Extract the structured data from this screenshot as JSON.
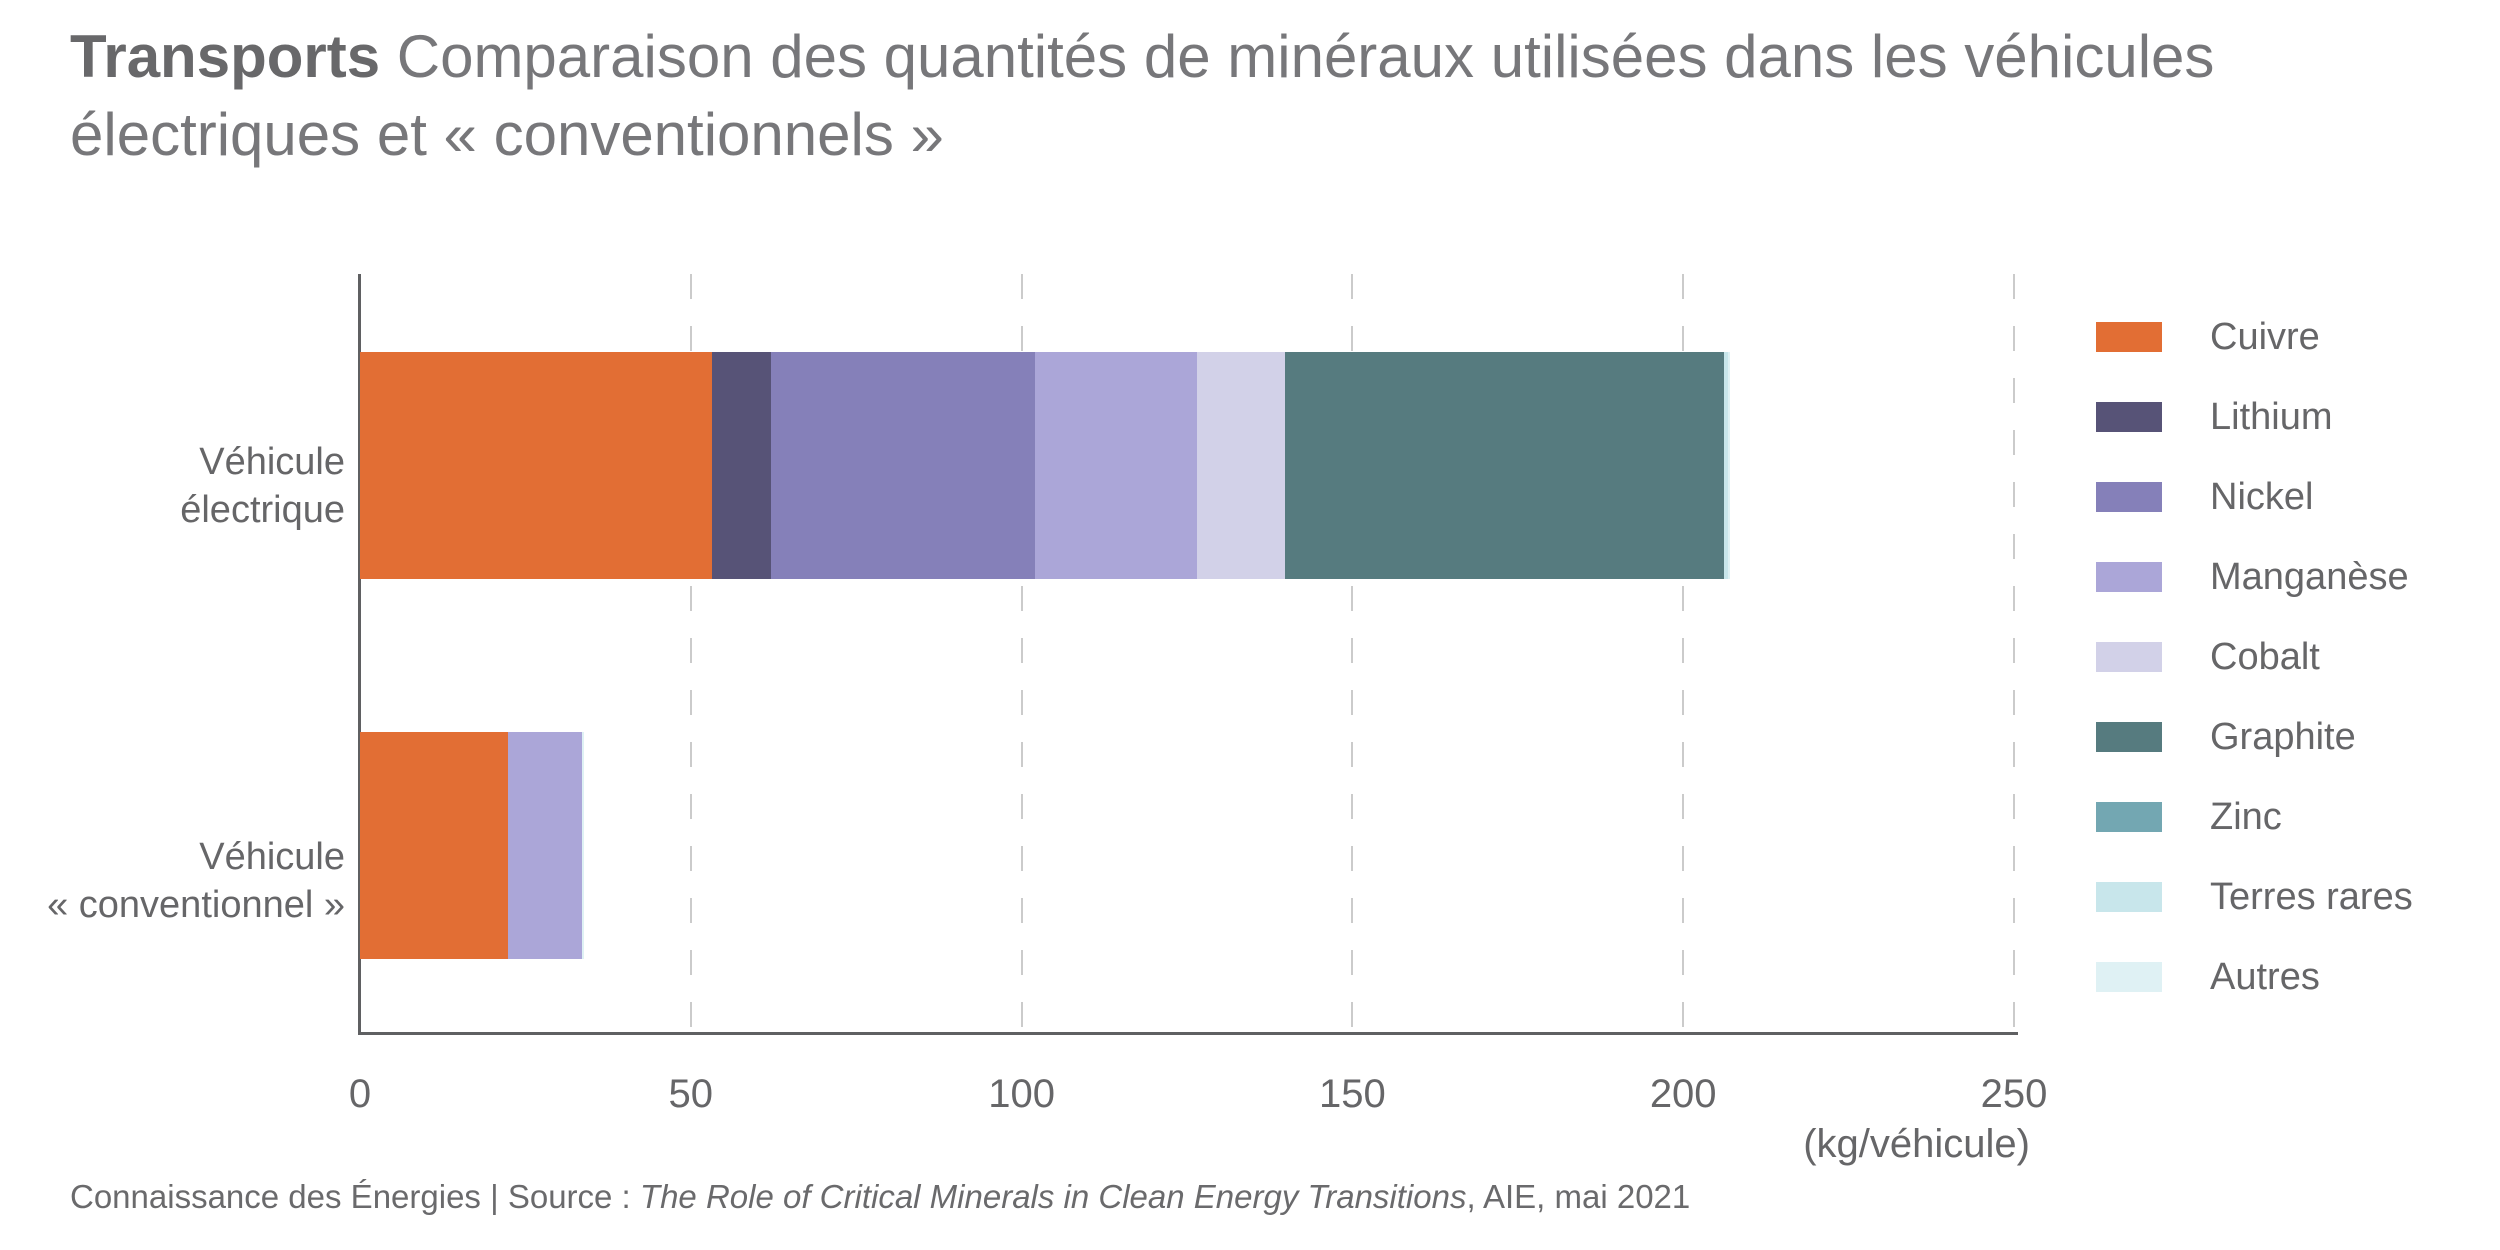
{
  "title": {
    "category": "Transports",
    "line1_rest": "Comparaison des quantités de minéraux utilisées dans les véhicules",
    "line2": "électriques et « conventionnels »"
  },
  "chart_data": {
    "type": "bar",
    "orientation": "horizontal",
    "stacked": true,
    "categories": [
      "Véhicule électrique",
      "Véhicule « conventionnel »"
    ],
    "series": [
      {
        "name": "Cuivre",
        "color": "#E26E34",
        "values": [
          53.2,
          22.3
        ]
      },
      {
        "name": "Lithium",
        "color": "#575377",
        "values": [
          8.9,
          0
        ]
      },
      {
        "name": "Nickel",
        "color": "#8580B9",
        "values": [
          39.9,
          0
        ]
      },
      {
        "name": "Manganèse",
        "color": "#ABA6D8",
        "values": [
          24.5,
          11.2
        ]
      },
      {
        "name": "Cobalt",
        "color": "#D2D1E8",
        "values": [
          13.3,
          0
        ]
      },
      {
        "name": "Graphite",
        "color": "#567B7F",
        "values": [
          66.3,
          0
        ]
      },
      {
        "name": "Zinc",
        "color": "#73A7B2",
        "values": [
          0.1,
          0.1
        ]
      },
      {
        "name": "Terres rares",
        "color": "#C8E6EB",
        "values": [
          0.5,
          0
        ]
      },
      {
        "name": "Autres",
        "color": "#DFF1F4",
        "values": [
          0.3,
          0.3
        ]
      }
    ],
    "x_ticks": [
      0,
      50,
      100,
      150,
      200,
      250
    ],
    "xlim": [
      0,
      250
    ],
    "xlabel": "(kg/véhicule)",
    "legend_position": "right",
    "grid": "vertical-dashed"
  },
  "category_labels": {
    "electric": {
      "line1": "Véhicule",
      "line2": "électrique"
    },
    "conventional": {
      "line1": "Véhicule",
      "line2": "« conventionnel »"
    }
  },
  "source": {
    "prefix": "Connaissance des Énergies | Source : ",
    "italic": "The Role of Critical Minerals in Clean Energy Transitions",
    "suffix": ", AIE, mai 2021"
  }
}
